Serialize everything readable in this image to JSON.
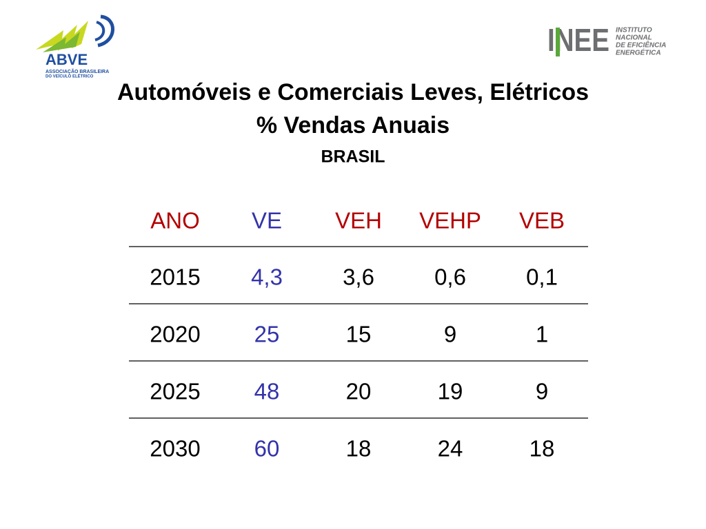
{
  "logos": {
    "left": {
      "name": "ABVE",
      "lines": [
        "ASSOCIAÇÃO BRASILEIRA",
        "DO VEÍCULO ELÉTRICO"
      ]
    },
    "right": {
      "name": "INEE",
      "lines": [
        "INSTITUTO",
        "NACIONAL",
        "DE EFICIÊNCIA",
        "ENERGÉTICA"
      ]
    }
  },
  "title": [
    "Automóveis e Comerciais Leves, Elétricos",
    "% Vendas Anuais"
  ],
  "subtitle": "BRASIL",
  "table": {
    "header": [
      "ANO",
      "VE",
      "VEH",
      "VEHP",
      "VEB"
    ],
    "rows": [
      [
        "2015",
        "4,3",
        "3,6",
        "0,6",
        "0,1"
      ],
      [
        "2020",
        "25",
        "15",
        "9",
        "1"
      ],
      [
        "2025",
        "48",
        "20",
        "19",
        "9"
      ],
      [
        "2030",
        "60",
        "18",
        "24",
        "18"
      ]
    ]
  }
}
